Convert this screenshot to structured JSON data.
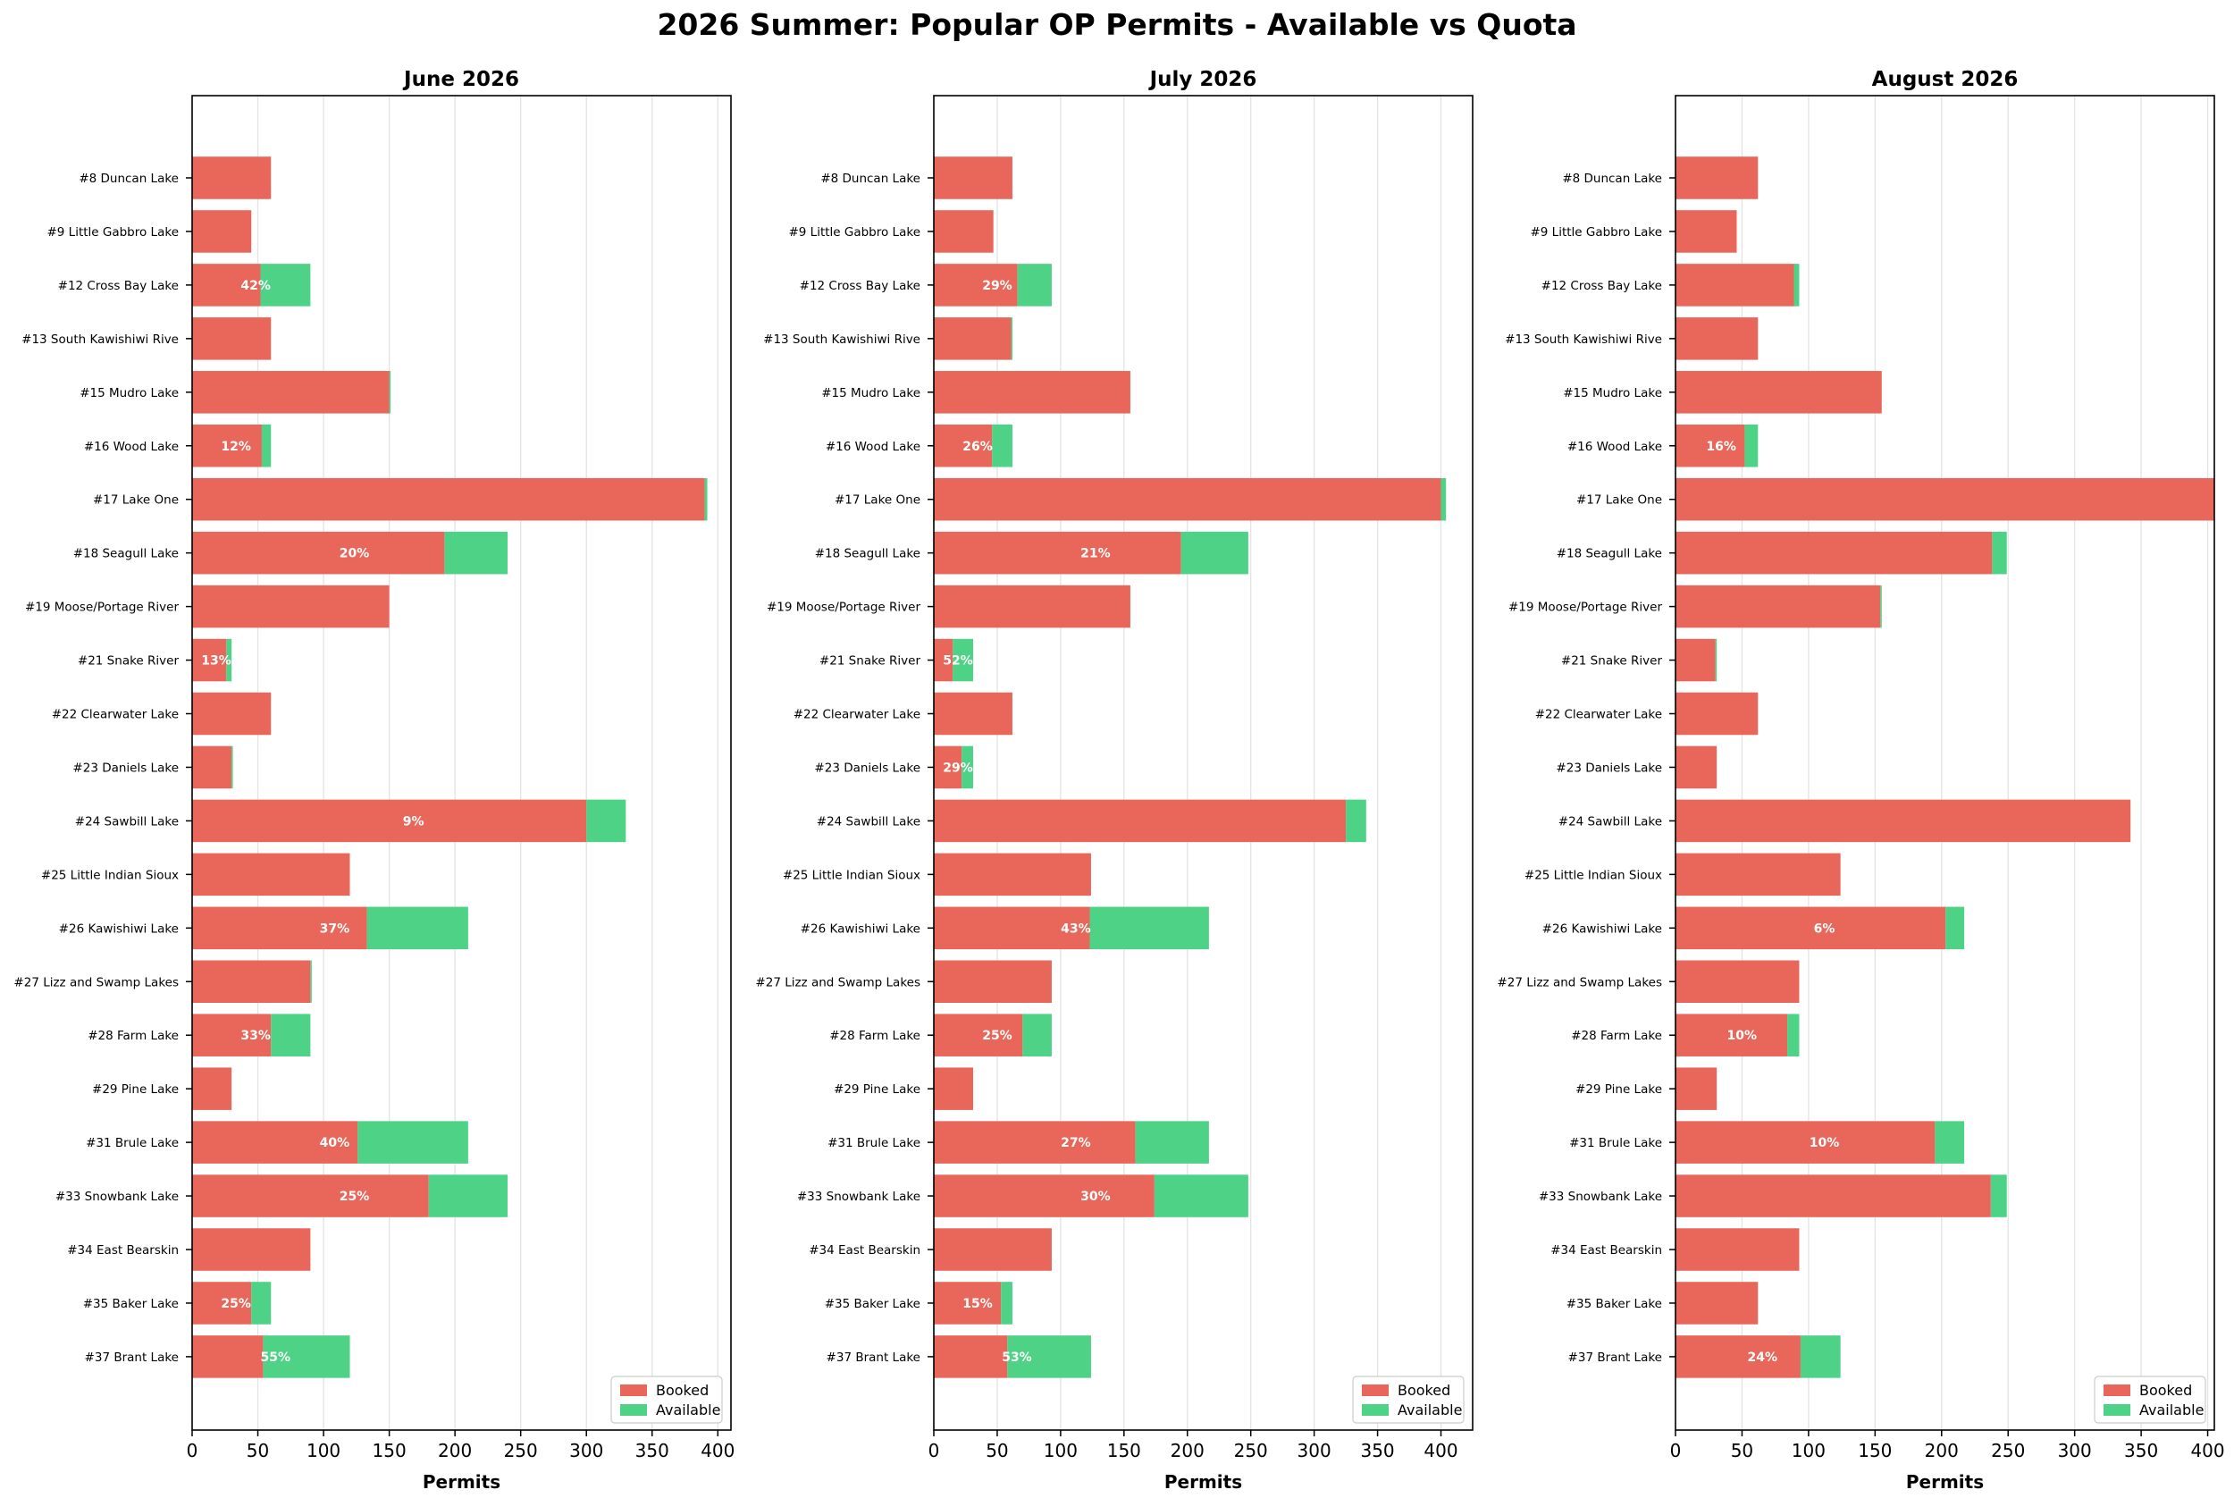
{
  "title": "2026 Summer: Popular OP Permits - Available vs Quota",
  "colors": {
    "booked": "#E8675A",
    "available": "#4ED286",
    "grid": "#e3e3e3",
    "axis": "#000000",
    "label_text": "#ffffff"
  },
  "legend": {
    "booked_label": "Booked",
    "available_label": "Available",
    "position": "lower-right"
  },
  "chart_data": [
    {
      "type": "bar",
      "orientation": "horizontal",
      "stacked": true,
      "title": "June 2026",
      "xlabel": "Permits",
      "xlim": [
        0,
        410
      ],
      "xticks": [
        0,
        50,
        100,
        150,
        200,
        250,
        300,
        350,
        400
      ],
      "categories": [
        "#8 Duncan Lake",
        "#9 Little Gabbro Lake",
        "#12 Cross Bay Lake",
        "#13 South Kawishiwi Rive",
        "#15 Mudro Lake",
        "#16 Wood Lake",
        "#17 Lake One",
        "#18 Seagull Lake",
        "#19 Moose/Portage River",
        "#21 Snake River",
        "#22 Clearwater Lake",
        "#23 Daniels Lake",
        "#24 Sawbill Lake",
        "#25 Little Indian Sioux",
        "#26 Kawishiwi Lake",
        "#27 Lizz and Swamp Lakes",
        "#28 Farm Lake",
        "#29 Pine Lake",
        "#31 Brule Lake",
        "#33 Snowbank Lake",
        "#34 East Bearskin",
        "#35 Baker Lake",
        "#37 Brant Lake"
      ],
      "series": [
        {
          "name": "Booked",
          "values": [
            60,
            45,
            52,
            60,
            150,
            53,
            390,
            192,
            150,
            26,
            60,
            30,
            300,
            120,
            133,
            90,
            60,
            30,
            126,
            180,
            90,
            45,
            54
          ]
        },
        {
          "name": "Available",
          "values": [
            0,
            0,
            38,
            0,
            1,
            7,
            2,
            48,
            0,
            4,
            0,
            1,
            30,
            0,
            77,
            1,
            30,
            0,
            84,
            60,
            0,
            15,
            66
          ]
        }
      ],
      "labels": [
        "",
        "",
        "42%",
        "",
        "",
        "12%",
        "",
        "20%",
        "",
        "13%",
        "",
        "",
        "9%",
        "",
        "37%",
        "",
        "33%",
        "",
        "40%",
        "25%",
        "",
        "25%",
        "55%"
      ]
    },
    {
      "type": "bar",
      "orientation": "horizontal",
      "stacked": true,
      "title": "July 2026",
      "xlabel": "Permits",
      "xlim": [
        0,
        425
      ],
      "xticks": [
        0,
        50,
        100,
        150,
        200,
        250,
        300,
        350,
        400
      ],
      "categories": [
        "#8 Duncan Lake",
        "#9 Little Gabbro Lake",
        "#12 Cross Bay Lake",
        "#13 South Kawishiwi Rive",
        "#15 Mudro Lake",
        "#16 Wood Lake",
        "#17 Lake One",
        "#18 Seagull Lake",
        "#19 Moose/Portage River",
        "#21 Snake River",
        "#22 Clearwater Lake",
        "#23 Daniels Lake",
        "#24 Sawbill Lake",
        "#25 Little Indian Sioux",
        "#26 Kawishiwi Lake",
        "#27 Lizz and Swamp Lakes",
        "#28 Farm Lake",
        "#29 Pine Lake",
        "#31 Brule Lake",
        "#33 Snowbank Lake",
        "#34 East Bearskin",
        "#35 Baker Lake",
        "#37 Brant Lake"
      ],
      "series": [
        {
          "name": "Booked",
          "values": [
            62,
            47,
            66,
            61,
            155,
            46,
            400,
            195,
            155,
            15,
            62,
            22,
            325,
            124,
            123,
            93,
            70,
            31,
            159,
            174,
            93,
            53,
            58
          ]
        },
        {
          "name": "Available",
          "values": [
            0,
            0,
            27,
            1,
            0,
            16,
            4,
            53,
            0,
            16,
            0,
            9,
            16,
            0,
            94,
            0,
            23,
            0,
            58,
            74,
            0,
            9,
            66
          ]
        }
      ],
      "labels": [
        "",
        "",
        "29%",
        "",
        "",
        "26%",
        "",
        "21%",
        "",
        "52%",
        "",
        "29%",
        "",
        "",
        "43%",
        "",
        "25%",
        "",
        "27%",
        "30%",
        "",
        "15%",
        "53%"
      ]
    },
    {
      "type": "bar",
      "orientation": "horizontal",
      "stacked": true,
      "title": "August 2026",
      "xlabel": "Permits",
      "xlim": [
        0,
        405
      ],
      "xticks": [
        0,
        50,
        100,
        150,
        200,
        250,
        300,
        350,
        400
      ],
      "categories": [
        "#8 Duncan Lake",
        "#9 Little Gabbro Lake",
        "#12 Cross Bay Lake",
        "#13 South Kawishiwi Rive",
        "#15 Mudro Lake",
        "#16 Wood Lake",
        "#17 Lake One",
        "#18 Seagull Lake",
        "#19 Moose/Portage River",
        "#21 Snake River",
        "#22 Clearwater Lake",
        "#23 Daniels Lake",
        "#24 Sawbill Lake",
        "#25 Little Indian Sioux",
        "#26 Kawishiwi Lake",
        "#27 Lizz and Swamp Lakes",
        "#28 Farm Lake",
        "#29 Pine Lake",
        "#31 Brule Lake",
        "#33 Snowbank Lake",
        "#34 East Bearskin",
        "#35 Baker Lake",
        "#37 Brant Lake"
      ],
      "series": [
        {
          "name": "Booked",
          "values": [
            62,
            46,
            89,
            62,
            155,
            52,
            408,
            238,
            154,
            30,
            62,
            31,
            342,
            124,
            203,
            93,
            84,
            31,
            195,
            237,
            93,
            62,
            94
          ]
        },
        {
          "name": "Available",
          "values": [
            0,
            0,
            4,
            0,
            0,
            10,
            0,
            11,
            1,
            1,
            0,
            0,
            0,
            0,
            14,
            0,
            9,
            0,
            22,
            12,
            0,
            0,
            30
          ]
        }
      ],
      "labels": [
        "",
        "",
        "",
        "",
        "",
        "16%",
        "",
        "",
        "",
        "",
        "",
        "",
        "",
        "",
        "6%",
        "",
        "10%",
        "",
        "10%",
        "",
        "",
        "",
        "24%"
      ]
    }
  ]
}
